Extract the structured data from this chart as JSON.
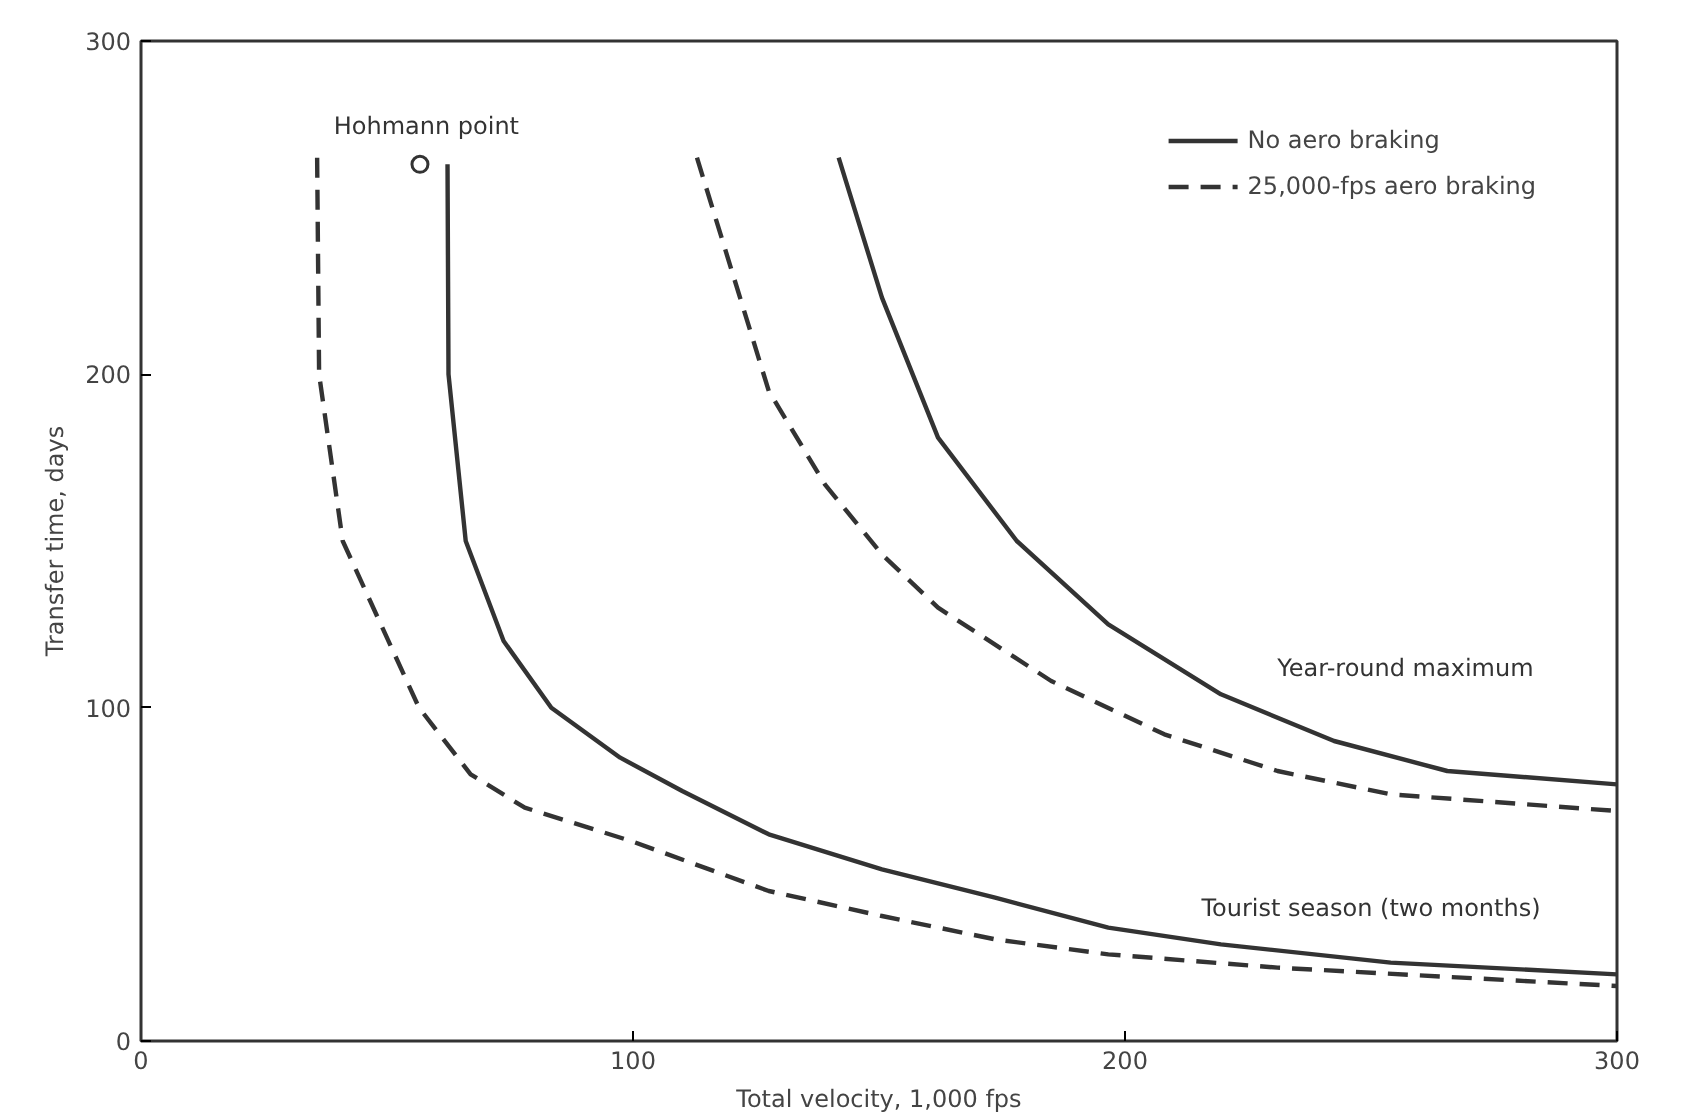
{
  "chart_data": {
    "type": "line",
    "xlabel": "Total velocity, 1,000 fps",
    "ylabel": "Transfer time, days",
    "xlim": [
      0,
      300
    ],
    "ylim": [
      0,
      300
    ],
    "xticks": [
      0,
      100,
      200,
      300
    ],
    "yticks": [
      0,
      100,
      200,
      300
    ],
    "grid": false,
    "legend": "top right",
    "marker": "none",
    "series": [
      {
        "name": "No aero braking",
        "color": "#333333",
        "line_style": "solid",
        "x": [
          62.3,
          62.5,
          66,
          73.7,
          83.4,
          97.4,
          110,
          127.6,
          150.6,
          173.6,
          196.6,
          219.5,
          254,
          300
        ],
        "values": [
          263,
          200,
          150,
          120,
          100,
          85,
          75,
          62,
          51.5,
          43,
          34,
          29,
          23.5,
          20
        ]
      },
      {
        "name": "25,000-fps aero braking",
        "color": "#333333",
        "line_style": "dashed",
        "x": [
          35.8,
          36.2,
          41,
          56.5,
          67,
          78,
          99.6,
          127.6,
          150.6,
          173.6,
          196.6,
          231,
          300
        ],
        "values": [
          265,
          200,
          150,
          100,
          80,
          70,
          60,
          45,
          37.5,
          30.5,
          26,
          22,
          16.5
        ]
      },
      {
        "color": "#333333",
        "line_style": "solid",
        "x": [
          141.8,
          150.6,
          162,
          178,
          196.6,
          219.5,
          242.5,
          265.5,
          300
        ],
        "values": [
          265,
          223,
          181,
          150,
          125,
          104,
          90,
          81,
          77
        ]
      },
      {
        "color": "#333333",
        "line_style": "dashed",
        "x": [
          113,
          127.6,
          139,
          150.6,
          162,
          185,
          208,
          231,
          254,
          300
        ],
        "values": [
          265,
          195,
          167,
          146,
          130,
          108,
          92,
          81,
          74,
          69
        ]
      },
      {
        "type": "scatter",
        "marker": "circle",
        "color": "#333333",
        "x": [
          56.7
        ],
        "values": [
          263
        ]
      }
    ],
    "annotations": [
      {
        "text": "Hohmann point",
        "x": 58,
        "y": 262
      },
      "Year-round maximum",
      "Tourist season (two months)"
    ]
  }
}
